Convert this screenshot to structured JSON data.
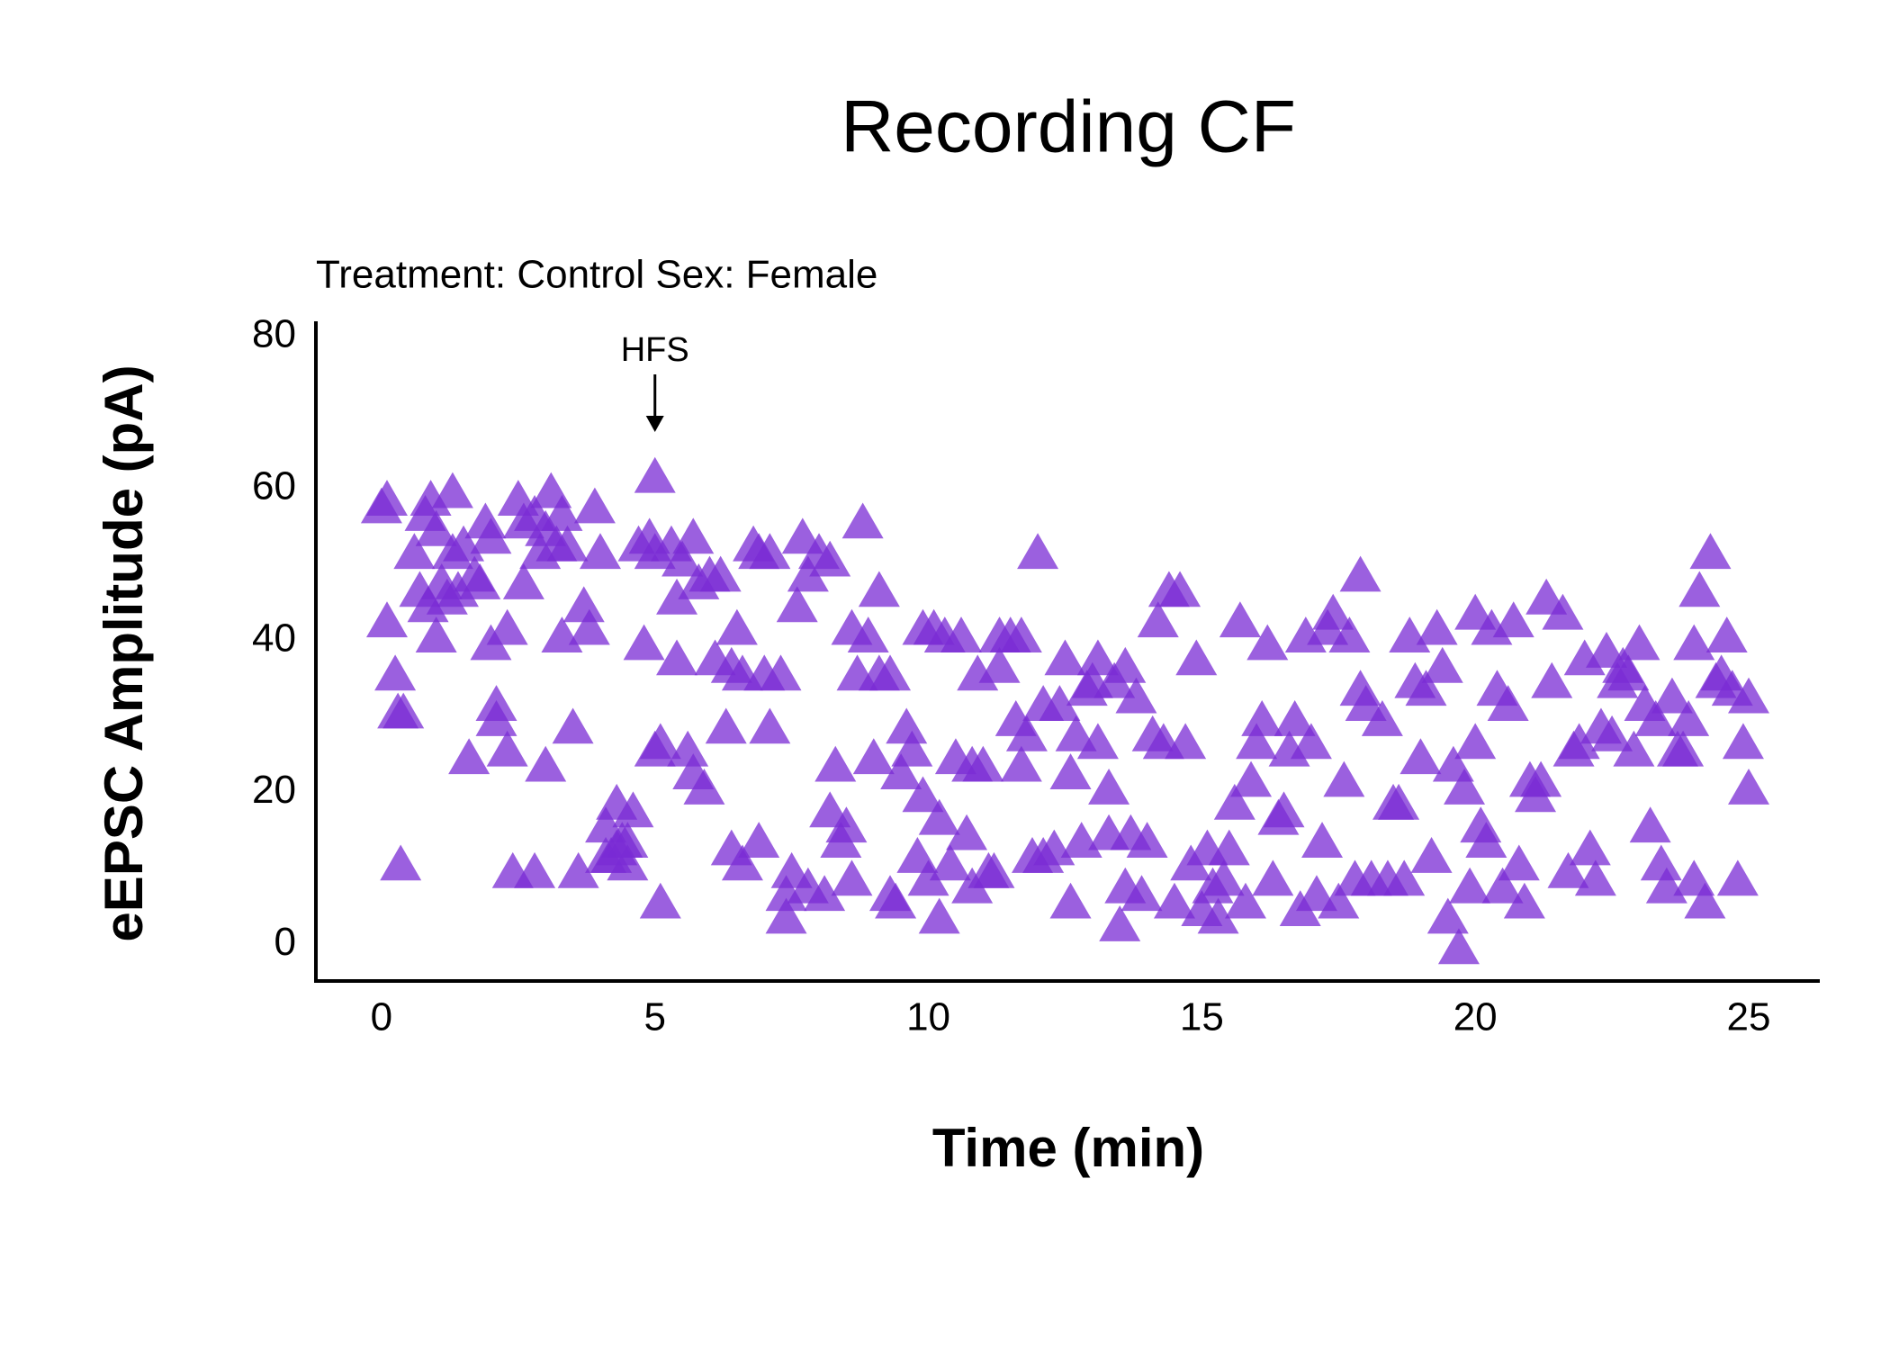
{
  "chart_data": {
    "type": "scatter",
    "title": "Recording CF",
    "subtitle": "Treatment: Control  Sex: Female",
    "x_label": "Time (min)",
    "y_label": "eEPSC Amplitude (pA)",
    "annotations": [
      {
        "text": "HFS",
        "x": 5
      }
    ],
    "color": "#7a2bd4",
    "alpha": 0.75,
    "marker": "triangle",
    "grid": false,
    "xlim": [
      -1.2,
      26.3
    ],
    "xticks": [
      0,
      5,
      10,
      15,
      20,
      25
    ],
    "ylim": [
      -4.8,
      82
    ],
    "yticks": [
      0,
      20,
      40,
      60,
      80
    ],
    "x": [
      0,
      0.1,
      0.1,
      0.25,
      0.3,
      0.4,
      0.35,
      0.6,
      0.7,
      0.8,
      0.85,
      0.9,
      1.0,
      1.0,
      1.1,
      1.2,
      1.3,
      1.3,
      1.4,
      1.5,
      1.6,
      1.7,
      1.8,
      1.9,
      2.0,
      2.0,
      2.1,
      2.1,
      2.3,
      2.3,
      2.4,
      2.5,
      2.6,
      2.6,
      2.8,
      2.8,
      2.9,
      3.0,
      3.1,
      3.0,
      3.2,
      3.3,
      3.3,
      3.4,
      3.5,
      3.6,
      3.7,
      3.8,
      3.9,
      4.0,
      4.1,
      4.1,
      4.2,
      4.3,
      4.3,
      4.4,
      4.5,
      4.5,
      4.6,
      4.7,
      4.8,
      4.9,
      5.0,
      5.0,
      5.0,
      5.1,
      5.1,
      5.3,
      5.4,
      5.4,
      5.5,
      5.6,
      5.7,
      5.7,
      5.8,
      5.9,
      6.0,
      6.1,
      6.2,
      6.3,
      6.4,
      6.4,
      6.5,
      6.6,
      6.6,
      6.8,
      6.9,
      6.9,
      7.0,
      7.1,
      7.1,
      7.3,
      7.4,
      7.4,
      7.5,
      7.6,
      7.7,
      7.8,
      7.8,
      8.0,
      8.1,
      8.2,
      8.2,
      8.3,
      8.4,
      8.5,
      8.6,
      8.6,
      8.7,
      8.8,
      8.9,
      9.0,
      9.1,
      9.1,
      9.3,
      9.3,
      9.4,
      9.5,
      9.6,
      9.7,
      9.8,
      9.9,
      9.9,
      10.0,
      10.1,
      10.2,
      10.2,
      10.3,
      10.4,
      10.5,
      10.6,
      10.7,
      10.8,
      10.8,
      10.9,
      11.0,
      11.1,
      11.2,
      11.3,
      11.3,
      11.5,
      11.6,
      11.7,
      11.7,
      11.8,
      11.9,
      12.0,
      12.1,
      12.1,
      12.3,
      12.4,
      12.5,
      12.6,
      12.6,
      12.7,
      12.8,
      12.9,
      13.0,
      13.1,
      13.1,
      13.3,
      13.3,
      13.4,
      13.5,
      13.6,
      13.6,
      13.7,
      13.8,
      13.9,
      14.0,
      14.1,
      14.2,
      14.3,
      14.4,
      14.5,
      14.6,
      14.7,
      14.8,
      14.9,
      15.0,
      15.1,
      15.2,
      15.3,
      15.4,
      15.5,
      15.6,
      15.7,
      15.8,
      15.9,
      16.0,
      16.1,
      16.2,
      16.3,
      16.4,
      16.5,
      16.6,
      16.7,
      16.8,
      16.9,
      17.0,
      17.1,
      17.2,
      17.3,
      17.4,
      17.5,
      17.6,
      17.7,
      17.8,
      17.9,
      17.9,
      18.0,
      18.1,
      18.3,
      18.4,
      18.5,
      18.6,
      18.7,
      18.8,
      18.9,
      19.0,
      19.1,
      19.2,
      19.3,
      19.4,
      19.5,
      19.6,
      19.7,
      19.8,
      19.9,
      20.0,
      20.0,
      20.1,
      20.2,
      20.3,
      20.4,
      20.5,
      20.6,
      20.7,
      20.8,
      20.9,
      21.0,
      21.1,
      21.2,
      21.3,
      21.4,
      21.6,
      21.7,
      21.8,
      21.9,
      22.0,
      22.1,
      22.2,
      22.3,
      22.4,
      22.5,
      22.6,
      22.7,
      22.8,
      22.9,
      23.0,
      23.1,
      23.2,
      23.3,
      23.4,
      23.5,
      23.6,
      23.7,
      23.8,
      23.9,
      24.0,
      24.0,
      24.1,
      24.2,
      24.3,
      24.4,
      24.5,
      24.6,
      24.7,
      24.8,
      24.9,
      25.0,
      25.0
    ],
    "values": [
      57,
      58,
      42,
      35,
      30,
      30,
      10,
      51,
      46,
      56,
      44,
      58,
      54,
      40,
      47,
      45,
      51,
      59,
      46,
      52,
      24,
      48,
      47,
      55,
      39,
      53,
      31,
      29,
      41,
      25,
      9,
      58,
      55,
      47,
      56,
      9,
      51,
      54,
      59,
      23,
      52,
      56,
      40,
      52,
      28,
      9,
      44,
      41,
      57,
      51,
      15,
      11,
      11,
      18,
      12,
      13,
      13,
      10,
      17,
      52,
      39,
      53,
      61,
      51,
      25,
      26,
      5,
      52,
      45,
      37,
      50,
      25,
      53,
      22,
      47,
      20,
      48,
      37,
      48,
      28,
      36,
      12,
      41,
      35,
      10,
      52,
      51,
      13,
      35,
      51,
      28,
      35,
      3,
      6,
      9,
      44,
      53,
      48,
      7,
      51,
      6,
      50,
      17,
      23,
      13,
      15,
      8,
      41,
      35,
      55,
      40,
      24,
      35,
      46,
      35,
      6,
      5,
      22,
      28,
      25,
      11,
      41,
      19,
      8,
      41,
      3,
      16,
      40,
      10,
      24,
      40,
      14,
      7,
      23,
      35,
      23,
      9,
      9,
      36,
      40,
      40,
      29,
      23,
      40,
      27,
      11,
      51,
      31,
      11,
      12,
      31,
      37,
      22,
      5,
      27,
      13,
      33,
      34,
      37,
      26,
      20,
      14,
      34,
      2,
      36,
      7,
      14,
      32,
      6,
      13,
      27,
      42,
      26,
      46,
      5,
      46,
      26,
      10,
      37,
      4,
      12,
      7,
      3,
      8,
      12,
      18,
      42,
      5,
      21,
      26,
      29,
      39,
      8,
      16,
      17,
      25,
      29,
      4,
      40,
      26,
      6,
      13,
      41,
      43,
      5,
      21,
      40,
      8,
      48,
      33,
      31,
      8,
      29,
      8,
      18,
      18,
      8,
      40,
      34,
      24,
      33,
      11,
      41,
      36,
      3,
      23,
      -1,
      20,
      7,
      43,
      26,
      15,
      13,
      41,
      33,
      7,
      31,
      42,
      10,
      5,
      21,
      19,
      21,
      45,
      34,
      43,
      9,
      25,
      26,
      37,
      12,
      8,
      28,
      38,
      27,
      34,
      36,
      35,
      25,
      39,
      31,
      15,
      29,
      10,
      7,
      32,
      25,
      25,
      29,
      39,
      8,
      46,
      5,
      51,
      34,
      35,
      40,
      33,
      8,
      26,
      20,
      32
    ]
  }
}
